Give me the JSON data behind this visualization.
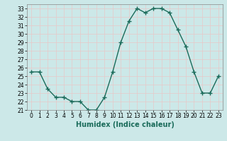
{
  "x": [
    0,
    1,
    2,
    3,
    4,
    5,
    6,
    7,
    8,
    9,
    10,
    11,
    12,
    13,
    14,
    15,
    16,
    17,
    18,
    19,
    20,
    21,
    22,
    23
  ],
  "y": [
    25.5,
    25.5,
    23.5,
    22.5,
    22.5,
    22.0,
    22.0,
    21.0,
    21.0,
    22.5,
    25.5,
    29.0,
    31.5,
    33.0,
    32.5,
    33.0,
    33.0,
    32.5,
    30.5,
    28.5,
    25.5,
    23.0,
    23.0,
    25.0
  ],
  "line_color": "#1a6b5a",
  "marker": "+",
  "marker_size": 4,
  "marker_linewidth": 1.0,
  "bg_color": "#cce8e8",
  "grid_color": "#b0d0d0",
  "xlabel": "Humidex (Indice chaleur)",
  "xlim": [
    -0.5,
    23.5
  ],
  "ylim": [
    21.0,
    33.5
  ],
  "yticks": [
    21,
    22,
    23,
    24,
    25,
    26,
    27,
    28,
    29,
    30,
    31,
    32,
    33
  ],
  "xticks": [
    0,
    1,
    2,
    3,
    4,
    5,
    6,
    7,
    8,
    9,
    10,
    11,
    12,
    13,
    14,
    15,
    16,
    17,
    18,
    19,
    20,
    21,
    22,
    23
  ],
  "tick_fontsize": 5.5,
  "label_fontsize": 7,
  "linewidth": 1.0
}
